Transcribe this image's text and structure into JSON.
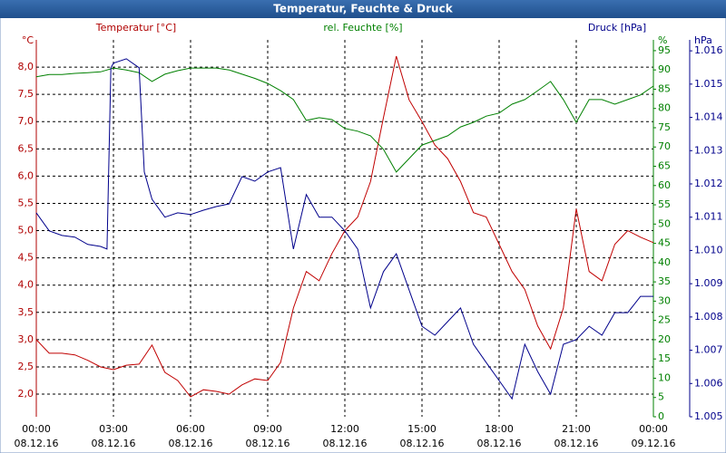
{
  "chart_data": {
    "type": "line",
    "title": "Temperatur, Feuchte & Druck",
    "xlim": [
      0,
      24
    ],
    "xticks": [
      {
        "value": 0,
        "label": "00:00"
      },
      {
        "value": 3,
        "label": "03:00"
      },
      {
        "value": 6,
        "label": "06:00"
      },
      {
        "value": 9,
        "label": "09:00"
      },
      {
        "value": 12,
        "label": "12:00"
      },
      {
        "value": 15,
        "label": "15:00"
      },
      {
        "value": 18,
        "label": "18:00"
      },
      {
        "value": 21,
        "label": "21:00"
      },
      {
        "value": 24,
        "label": "00:00"
      }
    ],
    "xtick_dates": [
      "08.12.16",
      "08.12.16",
      "08.12.16",
      "08.12.16",
      "08.12.16",
      "08.12.16",
      "08.12.16",
      "08.12.16",
      "09.12.16"
    ],
    "grid": true,
    "axes": [
      {
        "id": "y",
        "unit": "°C",
        "label": "Temperatur [°C]",
        "color": "#b00000",
        "lim": [
          1.585,
          8.5
        ],
        "ticks": [
          {
            "value": 2,
            "label": "2,0"
          },
          {
            "value": 2.5,
            "label": "2,5"
          },
          {
            "value": 3,
            "label": "3,0"
          },
          {
            "value": 3.5,
            "label": "3,5"
          },
          {
            "value": 4,
            "label": "4,0"
          },
          {
            "value": 4.5,
            "label": "4,5"
          },
          {
            "value": 5,
            "label": "5,0"
          },
          {
            "value": 5.5,
            "label": "5,5"
          },
          {
            "value": 6,
            "label": "6,0"
          },
          {
            "value": 6.5,
            "label": "6,5"
          },
          {
            "value": 7,
            "label": "7,0"
          },
          {
            "value": 7.5,
            "label": "7,5"
          },
          {
            "value": 8,
            "label": "8,0"
          }
        ]
      },
      {
        "id": "y2",
        "unit": "%",
        "label": "rel. Feuchte [%]",
        "color": "#008000",
        "lim": [
          0,
          97.8
        ],
        "ticks": [
          0,
          5,
          10,
          15,
          20,
          25,
          30,
          35,
          40,
          45,
          50,
          55,
          60,
          65,
          70,
          75,
          80,
          85,
          90,
          95
        ]
      },
      {
        "id": "y3",
        "unit": "hPa",
        "label": "Druck [hPa]",
        "color": "#00008b",
        "lim": [
          1.005,
          1.01633
        ],
        "ticks": [
          1.005,
          1.006,
          1.007,
          1.008,
          1.009,
          {
            "value": 1.01,
            "label": "1.010"
          },
          1.011,
          1.012,
          1.013,
          1.014,
          1.015,
          1.016
        ]
      }
    ],
    "series": [
      {
        "name": "Temperatur [°C]",
        "axis": "y",
        "color": "#c00000",
        "x": [
          0,
          0.5,
          1,
          1.5,
          2,
          2.5,
          3,
          3.5,
          4,
          4.5,
          5,
          5.5,
          6,
          6.5,
          7,
          7.5,
          8,
          8.5,
          9,
          9.5,
          10,
          10.5,
          11,
          11.5,
          12,
          12.5,
          13,
          13.5,
          14,
          14.5,
          15,
          15.5,
          16,
          16.5,
          17,
          17.5,
          18,
          18.5,
          19,
          19.5,
          20,
          20.5,
          21,
          21.5,
          22,
          22.5,
          23,
          23.5,
          24
        ],
        "values": [
          3.0,
          2.75,
          2.75,
          2.72,
          2.62,
          2.5,
          2.45,
          2.53,
          2.55,
          2.9,
          2.4,
          2.25,
          1.95,
          2.08,
          2.05,
          2.0,
          2.17,
          2.28,
          2.25,
          2.58,
          3.58,
          4.25,
          4.08,
          4.58,
          5.0,
          5.25,
          5.9,
          7.07,
          8.2,
          7.4,
          7.0,
          6.57,
          6.32,
          5.9,
          5.33,
          5.25,
          4.75,
          4.25,
          3.92,
          3.25,
          2.83,
          3.58,
          5.4,
          4.25,
          4.08,
          4.75,
          5.0,
          4.88,
          4.78
        ]
      },
      {
        "name": "rel. Feuchte [%]",
        "axis": "y2",
        "color": "#008000",
        "x": [
          0,
          0.5,
          1,
          1.5,
          2,
          2.5,
          3,
          3.5,
          4,
          4.5,
          5,
          5.5,
          6,
          6.5,
          7,
          7.5,
          8,
          8.5,
          9,
          9.5,
          10,
          10.5,
          11,
          11.5,
          12,
          12.5,
          13,
          13.5,
          14,
          14.5,
          15,
          15.5,
          16,
          16.5,
          17,
          17.5,
          18,
          18.5,
          19,
          19.5,
          20,
          20.5,
          21,
          21.5,
          22,
          22.5,
          23,
          23.5,
          24
        ],
        "values": [
          88.2,
          88.8,
          88.8,
          89.1,
          89.3,
          89.5,
          90.5,
          90.0,
          89.3,
          87.0,
          88.9,
          89.8,
          90.5,
          90.5,
          90.5,
          90.0,
          88.9,
          87.8,
          86.5,
          84.6,
          82.3,
          76.9,
          77.6,
          77.1,
          74.8,
          74.1,
          72.9,
          69.4,
          63.5,
          67.0,
          70.5,
          71.7,
          72.9,
          75.2,
          76.4,
          78.0,
          78.8,
          81.1,
          82.3,
          84.6,
          87.0,
          82.3,
          76.4,
          82.3,
          82.3,
          81.1,
          82.3,
          83.5,
          85.8
        ]
      },
      {
        "name": "Druck [hPa]",
        "axis": "y3",
        "color": "#00008b",
        "x": [
          0,
          0.5,
          1,
          1.5,
          2,
          2.5,
          2.75,
          2.9,
          3,
          3.5,
          4,
          4.2,
          4.5,
          5,
          5.5,
          6,
          6.5,
          7,
          7.5,
          8,
          8.5,
          9,
          9.5,
          10,
          10.5,
          11,
          11.5,
          12,
          12.5,
          13,
          13.5,
          14,
          14.5,
          15,
          15.5,
          16,
          16.5,
          17,
          17.5,
          18,
          18.5,
          19,
          19.5,
          20,
          20.5,
          21,
          21.5,
          22,
          22.5,
          23,
          23.5,
          24
        ],
        "values": [
          1.01113,
          1.01059,
          1.01045,
          1.0104,
          1.01018,
          1.01012,
          1.01004,
          1.01549,
          1.01563,
          1.01576,
          1.01549,
          1.01236,
          1.01154,
          1.011,
          1.01113,
          1.01108,
          1.01121,
          1.01132,
          1.0114,
          1.01222,
          1.01208,
          1.01236,
          1.01249,
          1.01004,
          1.01168,
          1.011,
          1.011,
          1.01059,
          1.01004,
          1.00827,
          1.00936,
          1.0099,
          1.00881,
          1.00772,
          1.00745,
          1.00786,
          1.00827,
          1.00718,
          1.00663,
          1.00609,
          1.00554,
          1.00718,
          1.00636,
          1.00568,
          1.00718,
          1.00732,
          1.00772,
          1.00745,
          1.00813,
          1.00813,
          1.00862,
          1.00862
        ]
      }
    ]
  }
}
